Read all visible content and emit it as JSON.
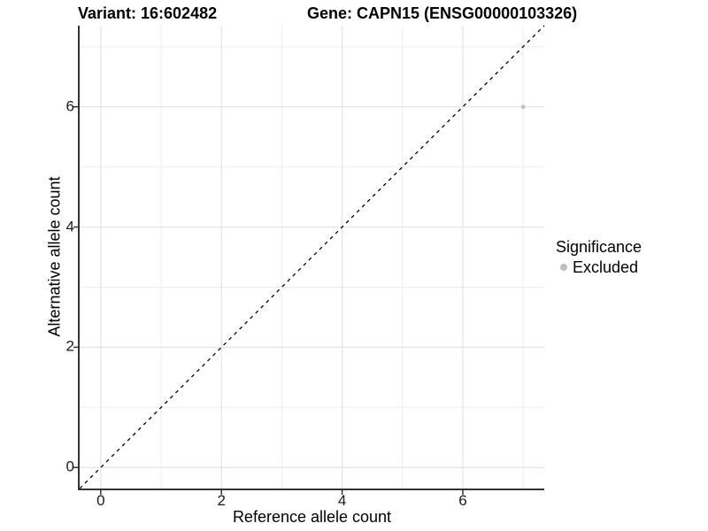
{
  "titles": {
    "variant": "Variant: 16:602482",
    "gene": "Gene: CAPN15 (ENSG00000103326)"
  },
  "chart_data": {
    "type": "scatter",
    "title": "Variant: 16:602482  /  Gene: CAPN15 (ENSG00000103326)",
    "xlabel": "Reference allele count",
    "ylabel": "Alternative allele count",
    "xlim": [
      -0.35,
      7.35
    ],
    "ylim": [
      -0.35,
      7.35
    ],
    "x_major_ticks": [
      0,
      2,
      4,
      6
    ],
    "y_major_ticks": [
      0,
      2,
      4,
      6
    ],
    "x_minor_ticks": [
      1,
      3,
      5,
      7
    ],
    "y_minor_ticks": [
      1,
      3,
      5,
      7
    ],
    "grid": "major+minor",
    "points": [
      {
        "x": 7,
        "y": 6,
        "series": "Excluded"
      }
    ],
    "identity_line": {
      "style": "dashed",
      "from": [
        -0.35,
        -0.35
      ],
      "to": [
        7.35,
        7.35
      ]
    },
    "legend": {
      "title": "Significance",
      "position": "right",
      "entries": [
        {
          "label": "Excluded",
          "color": "#bebebe"
        }
      ]
    }
  },
  "colors": {
    "grid_major": "#e3e3e3",
    "grid_minor": "#eeeeee",
    "axis_line": "#333333",
    "tick_mark": "#333333",
    "point": "#bebebe",
    "identity_line": "#000000",
    "text": "#000000"
  }
}
